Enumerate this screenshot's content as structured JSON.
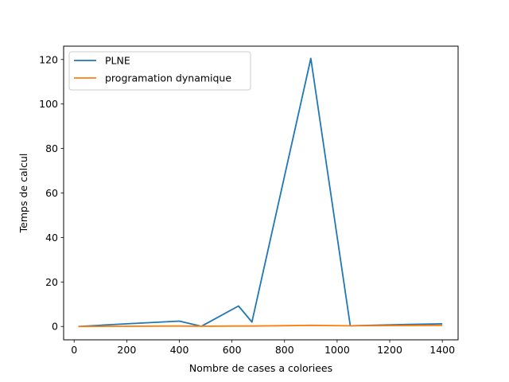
{
  "chart_data": {
    "type": "line",
    "title": "",
    "xlabel": "Nombre de cases a coloriees",
    "ylabel": "Temps de calcul",
    "xlim": [
      -40,
      1460
    ],
    "ylim": [
      -6,
      126
    ],
    "xticks": [
      0,
      200,
      400,
      600,
      800,
      1000,
      1200,
      1400
    ],
    "yticks": [
      0,
      20,
      40,
      60,
      80,
      100,
      120
    ],
    "grid": false,
    "legend_position": "top-left",
    "series": [
      {
        "name": "PLNE",
        "color": "#1f77b4",
        "x": [
          16,
          200,
          400,
          484,
          625,
          676,
          900,
          1050,
          1225,
          1400
        ],
        "y": [
          0.0,
          1.2,
          2.4,
          0.1,
          9.2,
          2.0,
          120.5,
          0.3,
          0.8,
          1.2
        ]
      },
      {
        "name": "programation dynamique",
        "color": "#ff7f0e",
        "x": [
          16,
          200,
          400,
          484,
          625,
          676,
          900,
          1050,
          1225,
          1400
        ],
        "y": [
          0.0,
          0.1,
          0.2,
          0.1,
          0.2,
          0.2,
          0.5,
          0.3,
          0.4,
          0.5
        ]
      }
    ]
  }
}
